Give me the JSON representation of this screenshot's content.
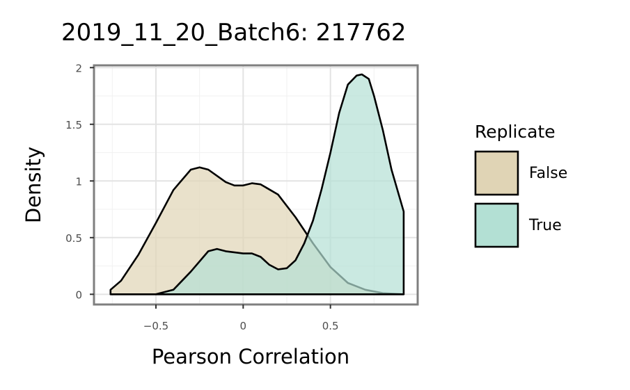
{
  "chart_data": {
    "type": "area",
    "title": "2019_11_20_Batch6: 217762",
    "xlabel": "Pearson Correlation",
    "ylabel": "Density",
    "xlim": [
      -0.855,
      1.0
    ],
    "ylim": [
      -0.09,
      2.02
    ],
    "x_ticks": [
      -0.5,
      0,
      0.5
    ],
    "x_tick_labels": [
      "−0.5",
      "0",
      "0.5"
    ],
    "y_ticks": [
      0,
      0.5,
      1,
      1.5,
      2
    ],
    "y_tick_labels": [
      "0",
      "0.5",
      "1",
      "1.5",
      "2"
    ],
    "grid": true,
    "legend": {
      "title": "Replicate",
      "placement": "right"
    },
    "series": [
      {
        "name": "False",
        "color": "#e0d4b5",
        "x": [
          -0.76,
          -0.7,
          -0.6,
          -0.5,
          -0.4,
          -0.3,
          -0.25,
          -0.2,
          -0.1,
          -0.05,
          0.0,
          0.05,
          0.1,
          0.2,
          0.3,
          0.4,
          0.5,
          0.6,
          0.7,
          0.8,
          0.92
        ],
        "y": [
          0.04,
          0.12,
          0.35,
          0.63,
          0.92,
          1.1,
          1.12,
          1.1,
          0.99,
          0.96,
          0.96,
          0.98,
          0.97,
          0.88,
          0.68,
          0.45,
          0.24,
          0.1,
          0.04,
          0.01,
          0.0
        ]
      },
      {
        "name": "True",
        "color": "#b3e0d4",
        "x": [
          -0.76,
          -0.5,
          -0.4,
          -0.3,
          -0.2,
          -0.15,
          -0.1,
          0.0,
          0.05,
          0.1,
          0.15,
          0.2,
          0.25,
          0.3,
          0.35,
          0.4,
          0.45,
          0.5,
          0.55,
          0.6,
          0.65,
          0.68,
          0.72,
          0.75,
          0.8,
          0.85,
          0.92,
          0.92
        ],
        "y": [
          0.0,
          0.0,
          0.04,
          0.2,
          0.38,
          0.4,
          0.38,
          0.36,
          0.36,
          0.33,
          0.26,
          0.22,
          0.23,
          0.3,
          0.45,
          0.65,
          0.93,
          1.25,
          1.6,
          1.85,
          1.93,
          1.94,
          1.9,
          1.75,
          1.45,
          1.1,
          0.73,
          0.0
        ]
      }
    ]
  }
}
